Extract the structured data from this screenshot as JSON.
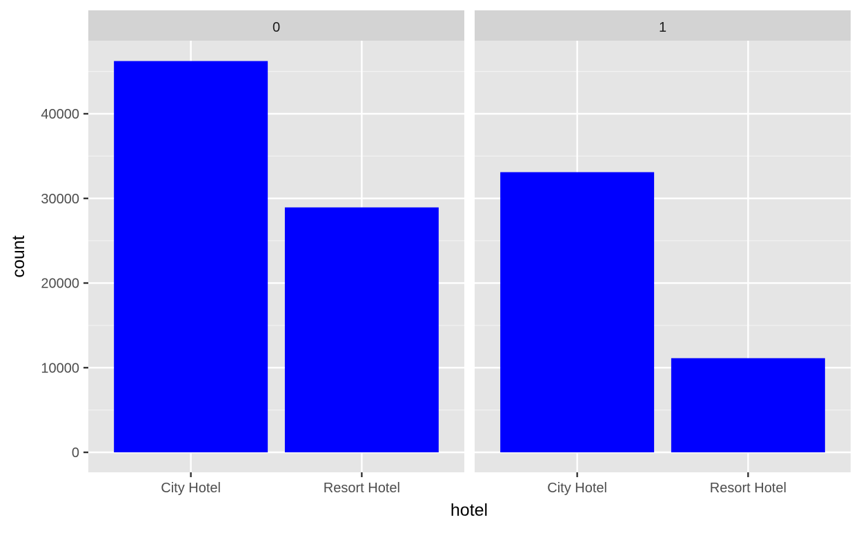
{
  "chart_data": {
    "type": "bar",
    "facet_variable_values": [
      "0",
      "1"
    ],
    "categories": [
      "City Hotel",
      "Resort Hotel"
    ],
    "facets": [
      {
        "label": "0",
        "values": [
          46228,
          28938
        ]
      },
      {
        "label": "1",
        "values": [
          33102,
          11122
        ]
      }
    ],
    "xlabel": "hotel",
    "ylabel": "count",
    "ylim": [
      0,
      47000
    ],
    "yticks": [
      0,
      10000,
      20000,
      30000,
      40000
    ],
    "ytick_labels": [
      "0",
      "10000",
      "20000",
      "30000",
      "40000"
    ],
    "bar_color": "#0000FF",
    "panel_background": "#E5E5E5",
    "strip_background": "#D3D3D3",
    "grid": true,
    "legend": "none"
  }
}
